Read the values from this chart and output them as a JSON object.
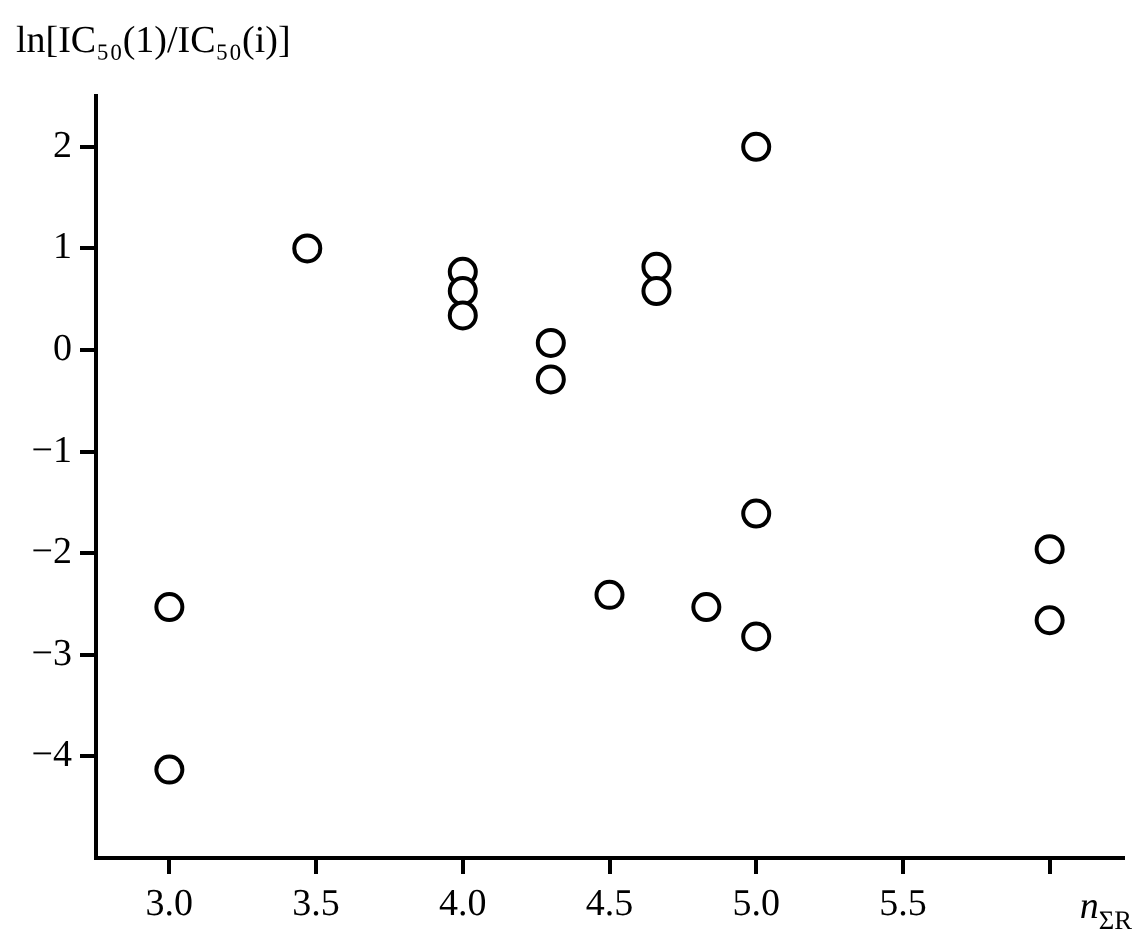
{
  "chart_data": {
    "type": "scatter",
    "ylabel": "ln[IC₅₀(1)/IC₅₀(i)]",
    "xlabel": "n$_{ΣR}$",
    "series": [
      {
        "color": "#000000",
        "x": [
          3.0,
          3.0,
          3.47,
          4.0,
          4.0,
          4.0,
          4.3,
          4.3,
          4.5,
          4.66,
          4.66,
          4.83,
          5.0,
          5.0,
          5.0,
          6.0,
          6.0
        ],
        "values": [
          -2.53,
          -4.13,
          1.0,
          0.77,
          0.58,
          0.34,
          0.07,
          -0.29,
          -2.41,
          0.82,
          0.58,
          -2.53,
          2.0,
          -1.61,
          -2.82,
          -1.96,
          -2.66
        ]
      }
    ],
    "xlim": [
      2.75,
      6.25
    ],
    "xticks": [
      {
        "value": 3,
        "label": "3.0"
      },
      3.5,
      {
        "value": 4,
        "label": "4.0"
      },
      4.5,
      {
        "value": 5,
        "label": "5.0"
      },
      5.5,
      {
        "value": 6.0,
        "label": null
      }
    ],
    "ylim": [
      -5,
      2.5
    ],
    "yticks": [
      -4,
      -3,
      -2,
      -1,
      0,
      1,
      2
    ],
    "grid": false,
    "legend": false,
    "marker": "circle"
  }
}
